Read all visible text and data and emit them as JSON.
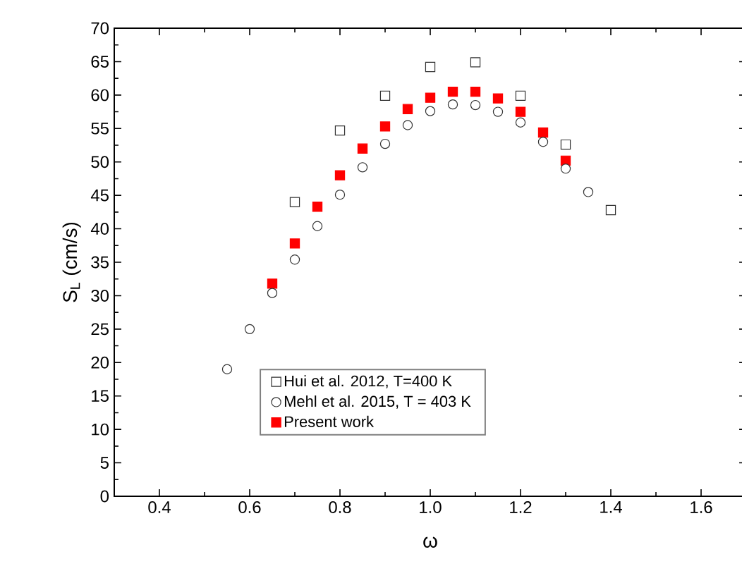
{
  "chart_data": {
    "type": "scatter",
    "xlabel": "ω",
    "ylabel": "S$_{L}$ (cm/s)",
    "xlim": [
      0.3,
      1.7
    ],
    "ylim": [
      0,
      70
    ],
    "xticks": [
      0.4,
      0.6,
      0.8,
      {
        "value": 1.0,
        "label": "1.0"
      },
      1.2,
      1.4,
      1.6
    ],
    "yticks": [
      0,
      5,
      10,
      15,
      20,
      25,
      30,
      35,
      40,
      45,
      50,
      55,
      60,
      65,
      70
    ],
    "legend": "bottom",
    "grid": false,
    "series": [
      {
        "name": "Hui et al. 2012, T=400 K",
        "color": "#333333",
        "marker": "square",
        "x": [
          0.7,
          0.8,
          0.9,
          1.0,
          1.1,
          1.2,
          1.3,
          1.4
        ],
        "values": [
          44,
          54.7,
          59.9,
          64.2,
          64.9,
          59.9,
          52.6,
          42.8
        ]
      },
      {
        "name": "Mehl et al. 2015, T = 403 K",
        "color": "#333333",
        "marker": "circle",
        "x": [
          0.55,
          0.6,
          0.65,
          0.7,
          0.75,
          0.8,
          0.85,
          0.9,
          0.95,
          1.0,
          1.05,
          1.1,
          1.15,
          1.2,
          1.25,
          1.3,
          1.35
        ],
        "values": [
          19,
          25,
          30.4,
          35.4,
          40.4,
          45.1,
          49.2,
          52.7,
          55.5,
          57.6,
          58.6,
          58.5,
          57.5,
          55.9,
          53,
          49,
          45.5
        ]
      },
      {
        "name": "Present work",
        "color": "#ff0000",
        "marker": "square",
        "x": [
          0.65,
          0.7,
          0.75,
          0.8,
          0.85,
          0.9,
          0.95,
          1.0,
          1.05,
          1.1,
          1.15,
          1.2,
          1.25,
          1.3
        ],
        "values": [
          31.8,
          37.8,
          43.3,
          48,
          52,
          55.3,
          57.9,
          59.6,
          60.5,
          60.5,
          59.5,
          57.5,
          54.4,
          50.2
        ]
      }
    ]
  }
}
